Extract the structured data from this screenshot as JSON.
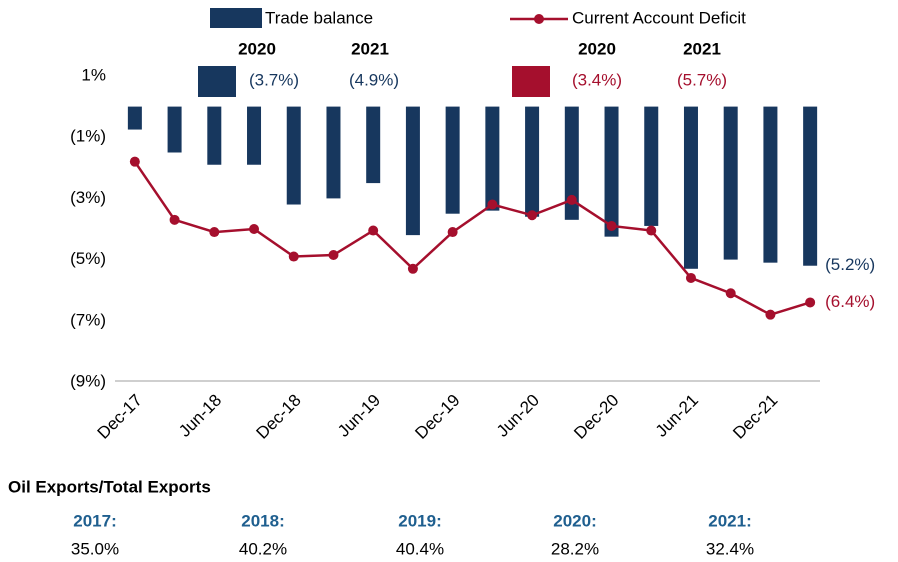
{
  "chart_data": {
    "type": "bar_line",
    "categories": [
      "Dec-17",
      null,
      "Jun-18",
      null,
      "Dec-18",
      null,
      "Jun-19",
      null,
      "Dec-19",
      null,
      "Jun-20",
      null,
      "Dec-20",
      null,
      "Jun-21",
      null,
      "Dec-21",
      null
    ],
    "series": [
      {
        "name": "Trade balance",
        "type": "bar",
        "color": "#17375e",
        "values": [
          -0.75,
          -1.5,
          -1.9,
          -1.9,
          -3.2,
          -3.0,
          -2.5,
          -4.2,
          -3.5,
          -3.4,
          -3.6,
          -3.7,
          -4.25,
          -3.9,
          -5.3,
          -5.0,
          -5.1,
          -5.2
        ],
        "value_labels": [
          null,
          null,
          null,
          null,
          null,
          null,
          null,
          null,
          null,
          null,
          null,
          null,
          null,
          null,
          null,
          null,
          null,
          "(5.2%)"
        ]
      },
      {
        "name": "Current Account Deficit",
        "type": "line",
        "color": "#a50f2d",
        "values": [
          -1.8,
          -3.7,
          -4.1,
          -4.0,
          -4.9,
          -4.85,
          -4.05,
          -5.3,
          -4.1,
          -3.2,
          -3.55,
          -3.05,
          -3.9,
          -4.05,
          -5.6,
          -6.1,
          -6.8,
          -6.4
        ],
        "value_labels": [
          null,
          null,
          null,
          null,
          null,
          null,
          null,
          null,
          null,
          null,
          null,
          null,
          null,
          null,
          null,
          null,
          null,
          "(6.4%)"
        ]
      }
    ],
    "ylim": [
      -9,
      1
    ],
    "yticks": [
      {
        "value": 1,
        "label": "1%"
      },
      {
        "value": -1,
        "label": "(1%)"
      },
      {
        "value": -3,
        "label": "(3%)"
      },
      {
        "value": -5,
        "label": "(5%)"
      },
      {
        "value": -7,
        "label": "(7%)"
      },
      {
        "value": -9,
        "label": "(9%)"
      }
    ],
    "grid": false,
    "annual": {
      "years": [
        "2020",
        "2021"
      ],
      "trade_balance": [
        "(3.7%)",
        "(4.9%)"
      ],
      "current_account": [
        "(3.4%)",
        "(5.7%)"
      ]
    },
    "oil_exports": {
      "title": "Oil Exports/Total Exports",
      "items": [
        {
          "year": "2017:",
          "value": "35.0%"
        },
        {
          "year": "2018:",
          "value": "40.2%"
        },
        {
          "year": "2019:",
          "value": "40.4%"
        },
        {
          "year": "2020:",
          "value": "28.2%"
        },
        {
          "year": "2021:",
          "value": "32.4%"
        }
      ]
    }
  }
}
